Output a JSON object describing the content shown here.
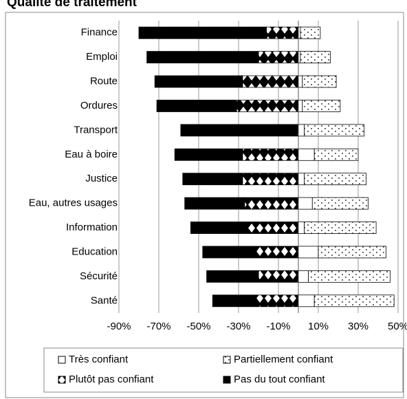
{
  "chart_data": {
    "type": "diverging_bar",
    "title": "Qualité de traitement",
    "categories": [
      "Finance",
      "Emploi",
      "Route",
      "Ordures",
      "Transport",
      "Eau à boire",
      "Justice",
      "Eau, autres usages",
      "Information",
      "Education",
      "Sécurité",
      "Santé"
    ],
    "series": [
      {
        "name": "Très confiant",
        "color": "#ffffff",
        "values": [
          1,
          1,
          2,
          2,
          3,
          8,
          3,
          7,
          3,
          10,
          5,
          8
        ]
      },
      {
        "name": "Partiellement confiant",
        "color": "#ffffff",
        "values": [
          10,
          15,
          17,
          19,
          30,
          22,
          31,
          28,
          36,
          34,
          41,
          40
        ]
      },
      {
        "name": "Plutôt pas confiant",
        "color": "#000000",
        "values": [
          -16,
          -20,
          -28,
          -31,
          -1,
          -28,
          -28,
          -27,
          -26,
          -21,
          -20,
          -21
        ]
      },
      {
        "name": "Pas du tout confiant",
        "color": "#000000",
        "values": [
          -64,
          -56,
          -44,
          -40,
          -58,
          -34,
          -30,
          -30,
          -28,
          -27,
          -26,
          -22
        ]
      }
    ],
    "xlim": [
      -90,
      50
    ],
    "xticks": [
      {
        "value": -90,
        "label": "-90%"
      },
      {
        "value": -70,
        "label": "-70%"
      },
      {
        "value": -50,
        "label": "-50%"
      },
      {
        "value": -30,
        "label": "-30%"
      },
      {
        "value": -10,
        "label": "-10%"
      },
      {
        "value": 10,
        "label": "10%"
      },
      {
        "value": 30,
        "label": "30%"
      },
      {
        "value": 50,
        "label": "50%"
      }
    ],
    "grid": true,
    "legend": "bottom"
  }
}
